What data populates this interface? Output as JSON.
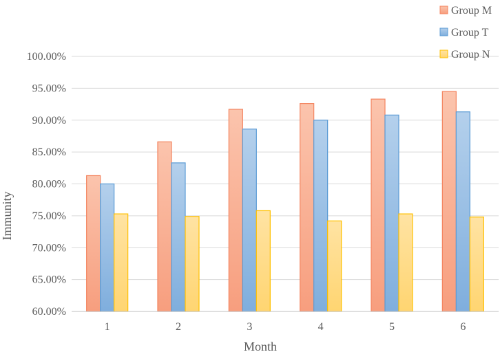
{
  "chart_data": {
    "type": "bar",
    "xlabel": "Month",
    "ylabel": "Immunity",
    "categories": [
      "1",
      "2",
      "3",
      "4",
      "5",
      "6"
    ],
    "ylim": [
      60,
      100
    ],
    "yticks": [
      "60.00%",
      "65.00%",
      "70.00%",
      "75.00%",
      "80.00%",
      "85.00%",
      "90.00%",
      "95.00%",
      "100.00%"
    ],
    "grid": true,
    "legend_position": "top-right",
    "series": [
      {
        "name": "Group M",
        "values": [
          81.3,
          86.6,
          91.7,
          92.6,
          93.3,
          94.5
        ],
        "color": "#F4845F"
      },
      {
        "name": "Group T",
        "values": [
          80.0,
          83.3,
          88.6,
          90.0,
          90.8,
          91.3
        ],
        "color": "#5B9BD5"
      },
      {
        "name": "Group N",
        "values": [
          75.3,
          74.9,
          75.8,
          74.2,
          75.3,
          74.8
        ],
        "color": "#FFC000"
      }
    ]
  }
}
